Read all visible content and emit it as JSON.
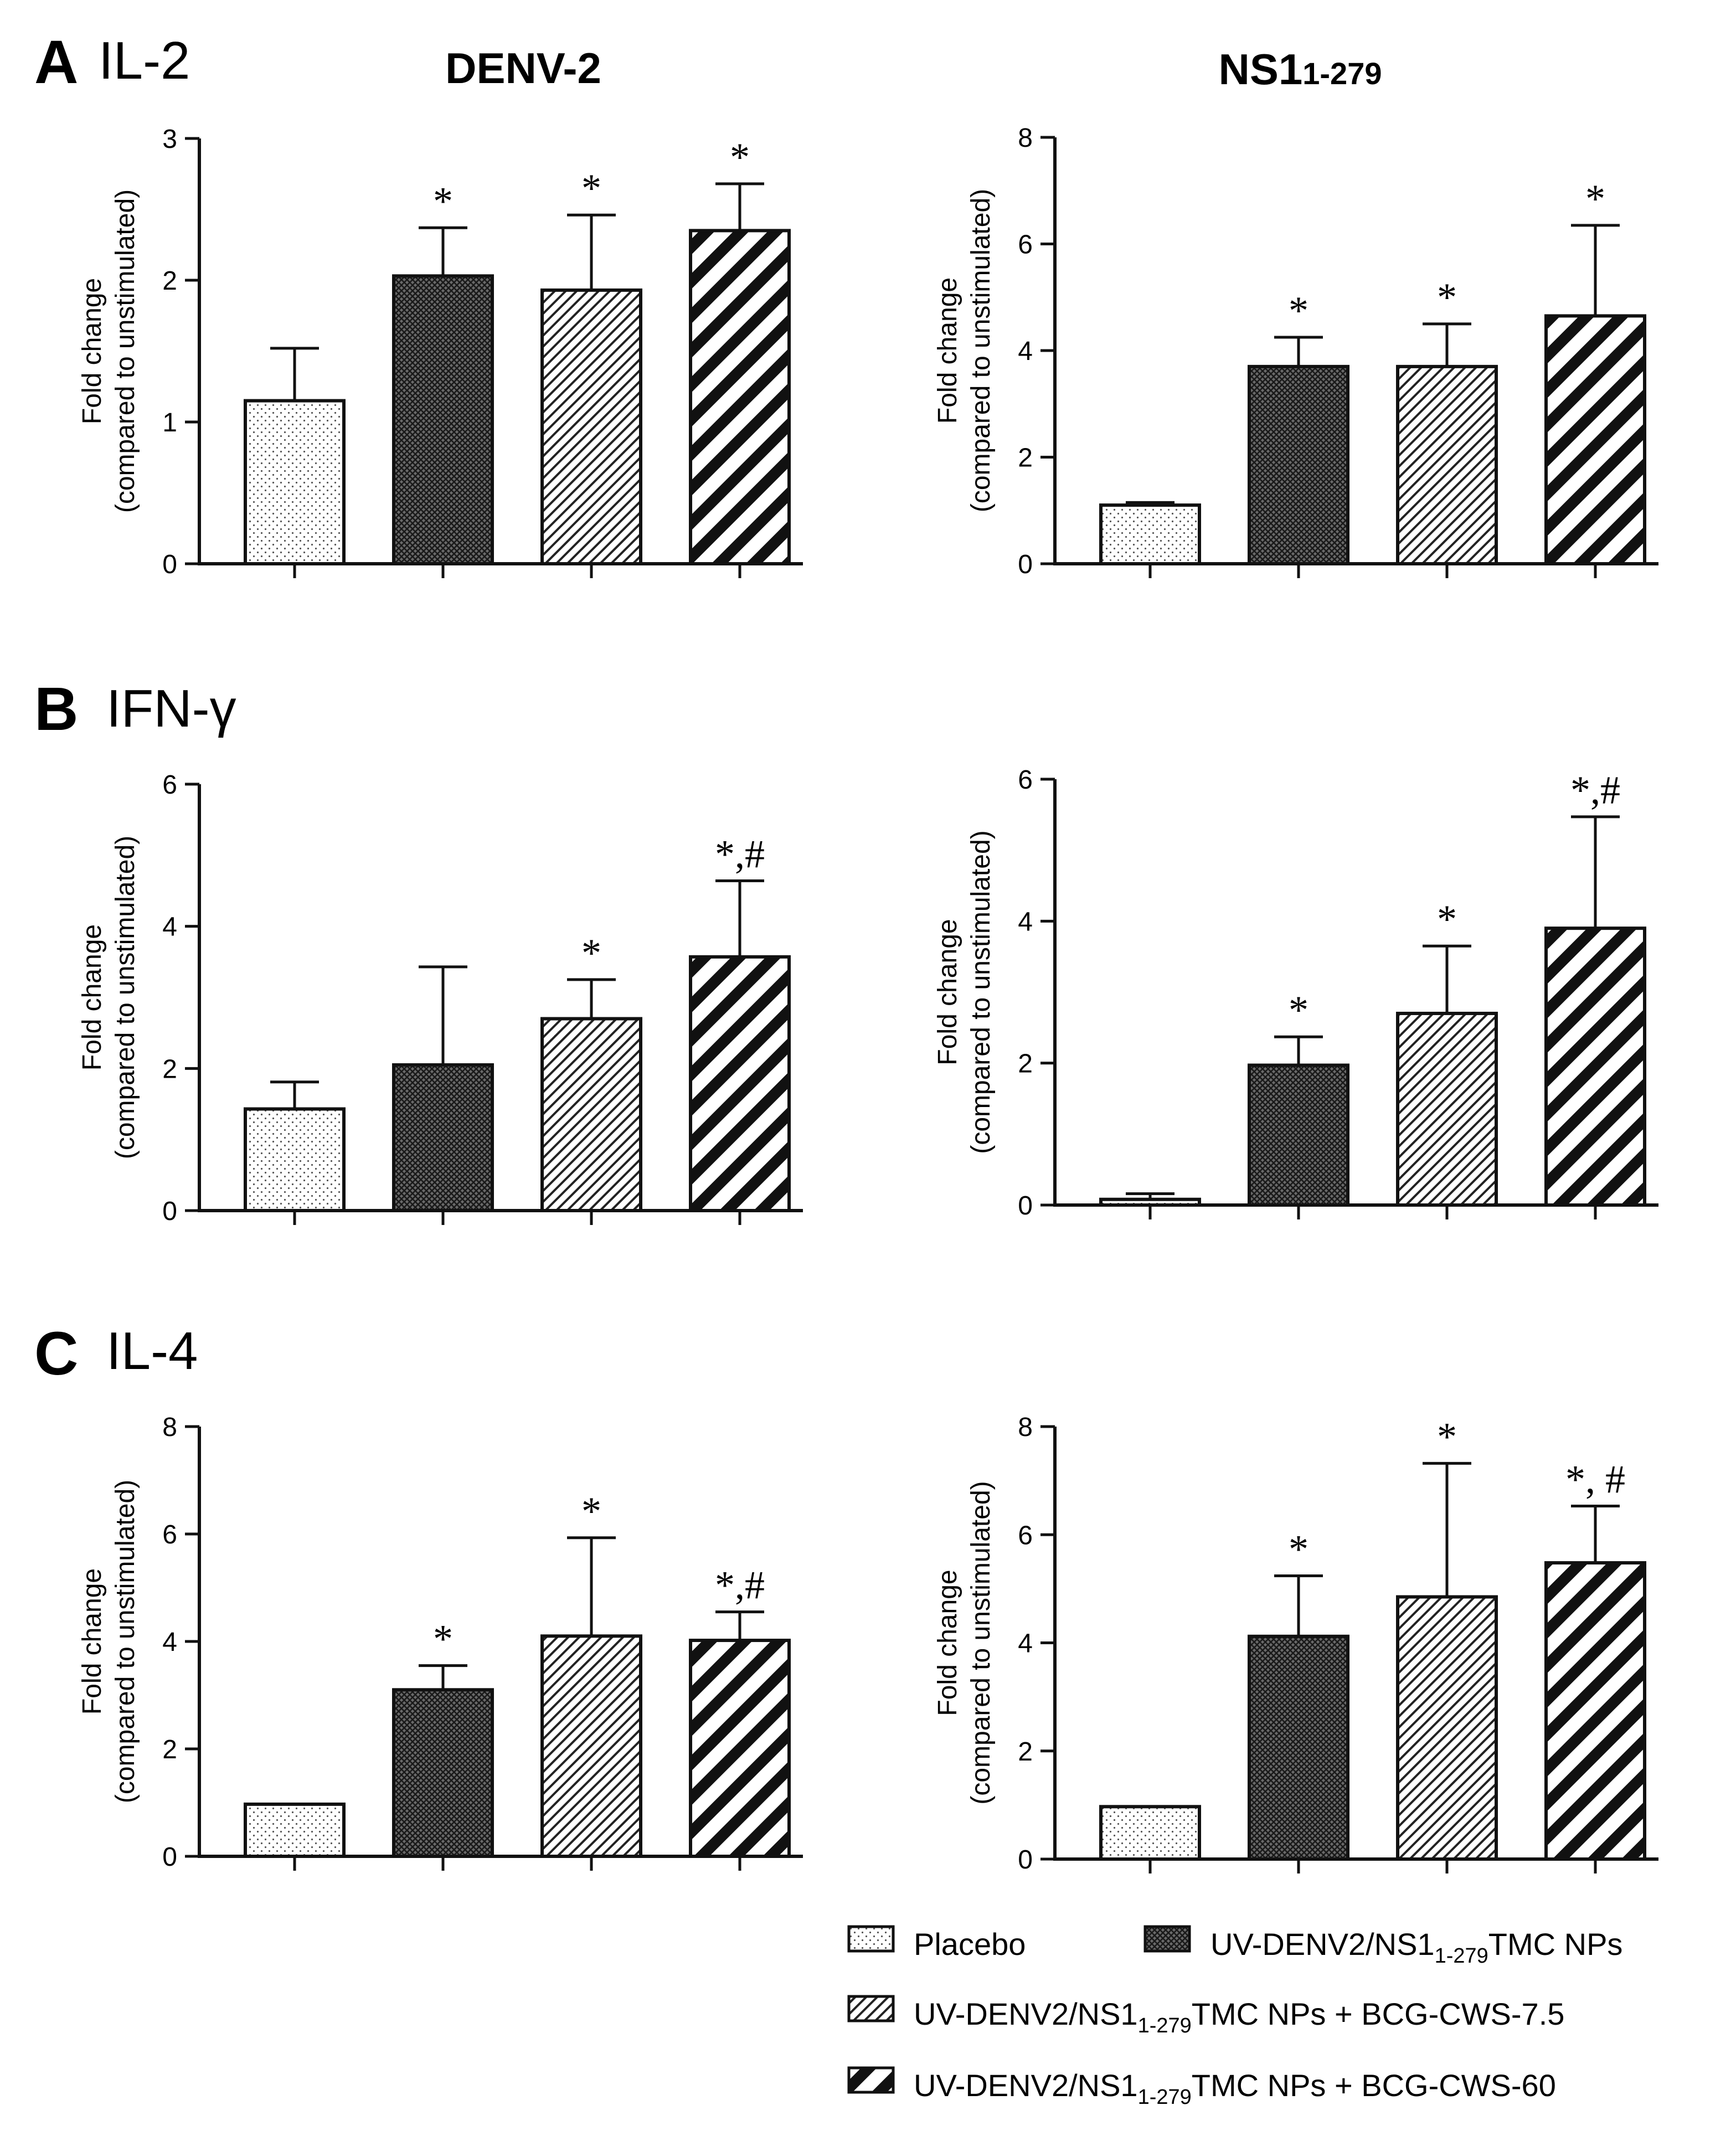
{
  "figure": {
    "column_titles": [
      {
        "main": "DENV-2",
        "sub": ""
      },
      {
        "main": "NS1",
        "sub": "1-279"
      }
    ],
    "ylabel_line1": "Fold change",
    "ylabel_line2": "(compared to unstimulated)",
    "colors": {
      "ink": "#111111",
      "fill": "#ffffff"
    }
  },
  "legend": {
    "items": [
      {
        "pattern": "dots",
        "pre": "Placebo",
        "sub": "",
        "post": ""
      },
      {
        "pattern": "cross",
        "pre": "UV-DENV2/NS1",
        "sub": "1-279",
        "post": "TMC NPs"
      },
      {
        "pattern": "thin",
        "pre": "UV-DENV2/NS1",
        "sub": "1-279",
        "post": "TMC NPs + BCG-CWS-7.5"
      },
      {
        "pattern": "thick",
        "pre": "UV-DENV2/NS1",
        "sub": "1-279",
        "post": "TMC NPs + BCG-CWS-60"
      }
    ]
  },
  "chart_data": [
    {
      "type": "bar",
      "panel": "A",
      "panel_label": "IL-2",
      "column": "DENV-2",
      "categories": [
        "Placebo",
        "UV-DENV2/NS1 1-279 TMC NPs",
        "UV-DENV2/NS1 1-279 TMC NPs + BCG-CWS-7.5",
        "UV-DENV2/NS1 1-279 TMC NPs + BCG-CWS-60"
      ],
      "values": [
        1.15,
        2.03,
        1.93,
        2.35
      ],
      "errors": [
        0.37,
        0.34,
        0.53,
        0.33
      ],
      "annotations": [
        "",
        "*",
        "*",
        "*"
      ],
      "ylim": [
        0,
        3
      ],
      "yticks": [
        "0",
        "1",
        "2",
        "3"
      ]
    },
    {
      "type": "bar",
      "panel": "A",
      "panel_label": "",
      "column": "NS1 1-279",
      "categories": [
        "Placebo",
        "UV-DENV2/NS1 1-279 TMC NPs",
        "UV-DENV2/NS1 1-279 TMC NPs + BCG-CWS-7.5",
        "UV-DENV2/NS1 1-279 TMC NPs + BCG-CWS-60"
      ],
      "values": [
        1.1,
        3.7,
        3.7,
        4.65
      ],
      "errors": [
        0.05,
        0.55,
        0.8,
        1.7
      ],
      "annotations": [
        "",
        "*",
        "*",
        "*"
      ],
      "ylim": [
        0,
        8
      ],
      "yticks": [
        "0",
        "2",
        "4",
        "6",
        "8"
      ]
    },
    {
      "type": "bar",
      "panel": "B",
      "panel_label": "IFN-γ",
      "column": "DENV-2",
      "categories": [
        "Placebo",
        "UV-DENV2/NS1 1-279 TMC NPs",
        "UV-DENV2/NS1 1-279 TMC NPs + BCG-CWS-7.5",
        "UV-DENV2/NS1 1-279 TMC NPs + BCG-CWS-60"
      ],
      "values": [
        1.43,
        2.05,
        2.7,
        3.57
      ],
      "errors": [
        0.38,
        1.38,
        0.55,
        1.07
      ],
      "annotations": [
        "",
        "",
        "*",
        "*,#"
      ],
      "ylim": [
        0,
        6
      ],
      "yticks": [
        "0",
        "2",
        "4",
        "6"
      ]
    },
    {
      "type": "bar",
      "panel": "B",
      "panel_label": "",
      "column": "NS1 1-279",
      "categories": [
        "Placebo",
        "UV-DENV2/NS1 1-279 TMC NPs",
        "UV-DENV2/NS1 1-279 TMC NPs + BCG-CWS-7.5",
        "UV-DENV2/NS1 1-279 TMC NPs + BCG-CWS-60"
      ],
      "values": [
        0.08,
        1.97,
        2.7,
        3.9
      ],
      "errors": [
        0.08,
        0.4,
        0.95,
        1.57
      ],
      "annotations": [
        "",
        "*",
        "*",
        "*,#"
      ],
      "ylim": [
        0,
        6
      ],
      "yticks": [
        "0",
        "2",
        "4",
        "6"
      ]
    },
    {
      "type": "bar",
      "panel": "C",
      "panel_label": "IL-4",
      "column": "DENV-2",
      "categories": [
        "Placebo",
        "UV-DENV2/NS1 1-279 TMC NPs",
        "UV-DENV2/NS1 1-279 TMC NPs + BCG-CWS-7.5",
        "UV-DENV2/NS1 1-279 TMC NPs + BCG-CWS-60"
      ],
      "values": [
        0.97,
        3.1,
        4.1,
        4.02
      ],
      "errors": [
        0,
        0.45,
        1.83,
        0.53
      ],
      "annotations": [
        "",
        "*",
        "*",
        "*,#"
      ],
      "ylim": [
        0,
        8
      ],
      "yticks": [
        "0",
        "2",
        "4",
        "6",
        "8"
      ]
    },
    {
      "type": "bar",
      "panel": "C",
      "panel_label": "",
      "column": "NS1 1-279",
      "categories": [
        "Placebo",
        "UV-DENV2/NS1 1-279 TMC NPs",
        "UV-DENV2/NS1 1-279 TMC NPs + BCG-CWS-7.5",
        "UV-DENV2/NS1 1-279 TMC NPs + BCG-CWS-60"
      ],
      "values": [
        0.97,
        4.12,
        4.85,
        5.48
      ],
      "errors": [
        0,
        1.12,
        2.47,
        1.05
      ],
      "annotations": [
        "",
        "*",
        "*",
        "*, #"
      ],
      "ylim": [
        0,
        8
      ],
      "yticks": [
        "0",
        "2",
        "4",
        "6",
        "8"
      ]
    }
  ]
}
